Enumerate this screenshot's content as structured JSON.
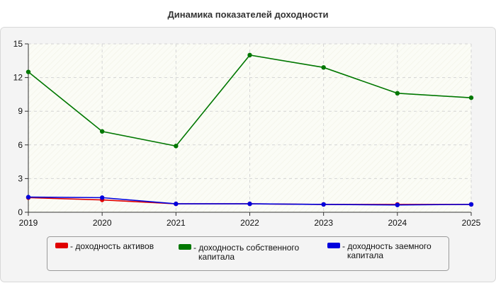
{
  "chart_data": {
    "type": "line",
    "title": "Динамика показателей доходности",
    "xlabel": "",
    "ylabel": "",
    "categories": [
      "2019",
      "2020",
      "2021",
      "2022",
      "2023",
      "2024",
      "2025"
    ],
    "ylim": [
      0,
      15
    ],
    "yticks": [
      0,
      3,
      6,
      9,
      12,
      15
    ],
    "grid": true,
    "legend_position": "bottom",
    "series": [
      {
        "name": "- доходность активов",
        "color": "#e00000",
        "values": [
          1.3,
          1.1,
          0.75,
          0.75,
          0.7,
          0.7,
          0.7
        ]
      },
      {
        "name": "- доходность собственного капитала",
        "color": "#007700",
        "values": [
          12.5,
          7.2,
          5.9,
          14.0,
          12.9,
          10.6,
          10.2
        ]
      },
      {
        "name": "- доходность заемного капитала",
        "color": "#0000dd",
        "values": [
          1.35,
          1.3,
          0.75,
          0.75,
          0.7,
          0.65,
          0.7
        ]
      }
    ]
  }
}
